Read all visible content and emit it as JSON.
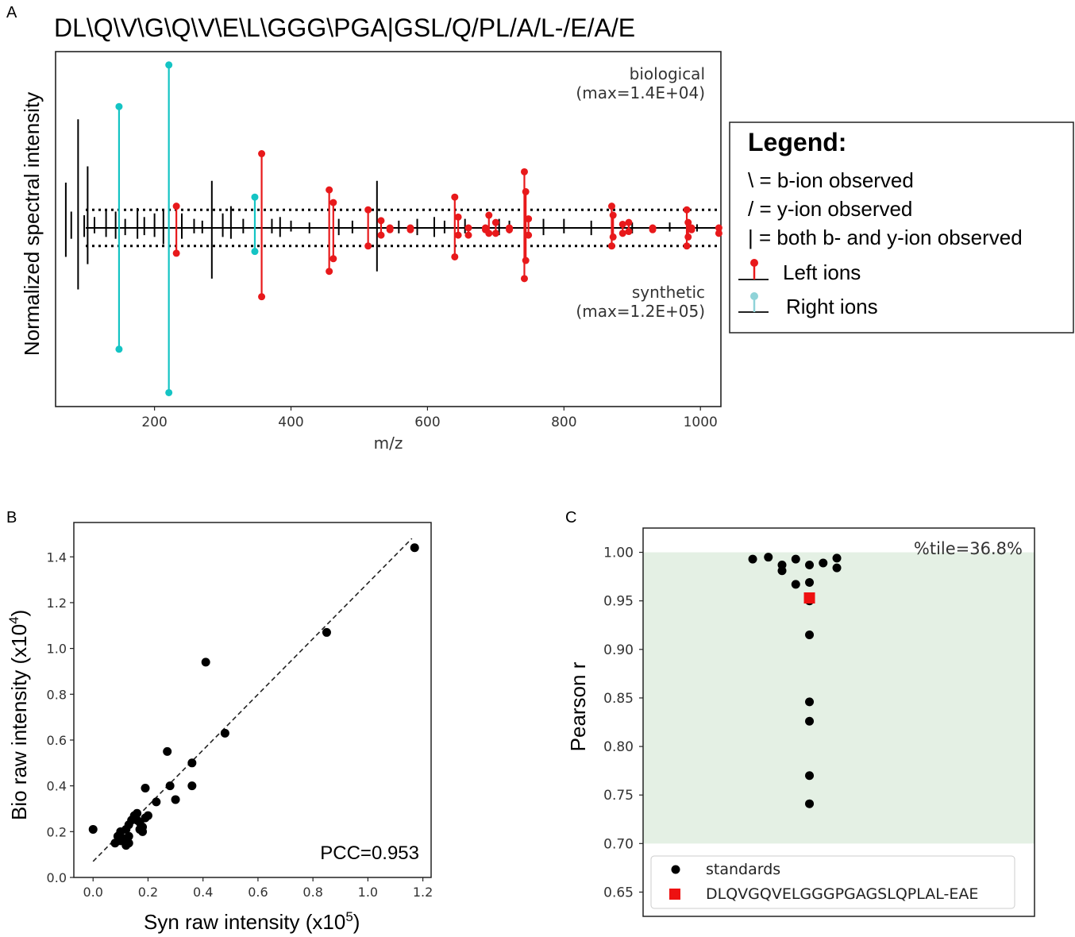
{
  "panels": {
    "a": "A",
    "b": "B",
    "c": "C"
  },
  "chart_data": [
    {
      "id": "A",
      "type": "spectrum-mirror",
      "title": "DL\\Q\\V\\G\\Q\\V\\E\\L\\GGG\\PGA|GSL/Q/PL/A/L-/E/A/E",
      "xlabel": "m/z",
      "ylabel": "Normalized spectral intensity",
      "xlim": [
        55,
        1030
      ],
      "ylim": [
        -1,
        1
      ],
      "xticks": [
        200,
        400,
        600,
        800,
        1000
      ],
      "top_label": "biological",
      "top_max": "(max=1.4E+04)",
      "bottom_label": "synthetic",
      "bottom_max": "(max=1.2E+05)",
      "threshold": 0.1,
      "colors": {
        "left": "#e8191b",
        "right": "#14c4c4",
        "unmatched": "#000000"
      },
      "peaks_unmatched": [
        {
          "mz": 70,
          "top": 0.25,
          "bottom": 0.16
        },
        {
          "mz": 78,
          "top": 0.09,
          "bottom": 0.06
        },
        {
          "mz": 88,
          "top": 0.6,
          "bottom": 0.34
        },
        {
          "mz": 97,
          "top": 0.07,
          "bottom": 0.05
        },
        {
          "mz": 102,
          "top": 0.34,
          "bottom": 0.2
        },
        {
          "mz": 112,
          "top": 0.06,
          "bottom": 0.03
        },
        {
          "mz": 129,
          "top": 0.1,
          "bottom": 0.05
        },
        {
          "mz": 143,
          "top": 0.09,
          "bottom": 0.06
        },
        {
          "mz": 157,
          "top": 0.05,
          "bottom": 0.04
        },
        {
          "mz": 175,
          "top": 0.11,
          "bottom": 0.06
        },
        {
          "mz": 185,
          "top": 0.06,
          "bottom": 0.04
        },
        {
          "mz": 200,
          "top": 0.08,
          "bottom": 0.05
        },
        {
          "mz": 213,
          "top": 0.1,
          "bottom": 0.09
        },
        {
          "mz": 240,
          "top": 0.08,
          "bottom": 0.06
        },
        {
          "mz": 258,
          "top": 0.05,
          "bottom": 0.03
        },
        {
          "mz": 270,
          "top": 0.04,
          "bottom": 0.03
        },
        {
          "mz": 284,
          "top": 0.26,
          "bottom": 0.28
        },
        {
          "mz": 300,
          "top": 0.08,
          "bottom": 0.05
        },
        {
          "mz": 312,
          "top": 0.12,
          "bottom": 0.06
        },
        {
          "mz": 330,
          "top": 0.05,
          "bottom": 0.03
        },
        {
          "mz": 372,
          "top": 0.05,
          "bottom": 0.03
        },
        {
          "mz": 384,
          "top": 0.06,
          "bottom": 0.05
        },
        {
          "mz": 400,
          "top": 0.04,
          "bottom": 0.02
        },
        {
          "mz": 427,
          "top": 0.03,
          "bottom": 0.03
        },
        {
          "mz": 470,
          "top": 0.05,
          "bottom": 0.04
        },
        {
          "mz": 490,
          "top": 0.04,
          "bottom": 0.03
        },
        {
          "mz": 526,
          "top": 0.26,
          "bottom": 0.24
        },
        {
          "mz": 558,
          "top": 0.04,
          "bottom": 0.03
        },
        {
          "mz": 585,
          "top": 0.05,
          "bottom": 0.04
        },
        {
          "mz": 610,
          "top": 0.06,
          "bottom": 0.05
        },
        {
          "mz": 625,
          "top": 0.04,
          "bottom": 0.03
        },
        {
          "mz": 655,
          "top": 0.05,
          "bottom": 0.03
        },
        {
          "mz": 705,
          "top": 0.05,
          "bottom": 0.04
        },
        {
          "mz": 720,
          "top": 0.04,
          "bottom": 0.03
        },
        {
          "mz": 770,
          "top": 0.05,
          "bottom": 0.04
        },
        {
          "mz": 800,
          "top": 0.05,
          "bottom": 0.03
        },
        {
          "mz": 840,
          "top": 0.04,
          "bottom": 0.04
        },
        {
          "mz": 900,
          "top": 0.03,
          "bottom": 0.03
        },
        {
          "mz": 955,
          "top": 0.03,
          "bottom": 0.02
        },
        {
          "mz": 995,
          "top": 0.02,
          "bottom": 0.02
        }
      ],
      "peaks_left_ions": [
        {
          "mz": 232,
          "top": 0.12,
          "bottom": 0.14
        },
        {
          "mz": 357,
          "top": 0.41,
          "bottom": 0.38
        },
        {
          "mz": 456,
          "top": 0.21,
          "bottom": 0.24
        },
        {
          "mz": 462,
          "top": 0.14,
          "bottom": 0.17
        },
        {
          "mz": 513,
          "top": 0.1,
          "bottom": 0.1
        },
        {
          "mz": 532,
          "top": 0.04,
          "bottom": 0.04
        },
        {
          "mz": 545,
          "top": 0.0,
          "bottom": 0.01
        },
        {
          "mz": 575,
          "top": 0.0,
          "bottom": 0.01
        },
        {
          "mz": 640,
          "top": 0.17,
          "bottom": 0.16
        },
        {
          "mz": 645,
          "top": 0.06,
          "bottom": 0.04
        },
        {
          "mz": 660,
          "top": 0.0,
          "bottom": 0.04
        },
        {
          "mz": 685,
          "top": 0.0,
          "bottom": 0.01
        },
        {
          "mz": 690,
          "top": 0.07,
          "bottom": 0.03
        },
        {
          "mz": 700,
          "top": 0.03,
          "bottom": 0.03
        },
        {
          "mz": 720,
          "top": 0.0,
          "bottom": 0.01
        },
        {
          "mz": 742,
          "top": 0.31,
          "bottom": 0.28
        },
        {
          "mz": 744,
          "top": 0.2,
          "bottom": 0.18
        },
        {
          "mz": 748,
          "top": 0.05,
          "bottom": 0.04
        },
        {
          "mz": 870,
          "top": 0.12,
          "bottom": 0.1
        },
        {
          "mz": 872,
          "top": 0.07,
          "bottom": 0.05
        },
        {
          "mz": 886,
          "top": 0.02,
          "bottom": 0.03
        },
        {
          "mz": 895,
          "top": 0.03,
          "bottom": 0.02
        },
        {
          "mz": 930,
          "top": 0.0,
          "bottom": 0.01
        },
        {
          "mz": 980,
          "top": 0.1,
          "bottom": 0.1
        },
        {
          "mz": 982,
          "top": 0.03,
          "bottom": 0.05
        },
        {
          "mz": 987,
          "top": 0.0,
          "bottom": 0.01
        },
        {
          "mz": 1027,
          "top": 0.0,
          "bottom": 0.03
        }
      ],
      "peaks_right_ions": [
        {
          "mz": 148,
          "top": 0.67,
          "bottom": 0.67
        },
        {
          "mz": 221,
          "top": 0.9,
          "bottom": 0.91
        },
        {
          "mz": 347,
          "top": 0.17,
          "bottom": 0.13
        }
      ]
    },
    {
      "id": "B",
      "type": "scatter",
      "xlabel": "Syn raw intensity (x10",
      "xlabel_sup": "5",
      "ylabel": "Bio raw intensity (x10",
      "ylabel_sup": "4",
      "label_close": ")",
      "xlim": [
        -0.07,
        1.23
      ],
      "ylim": [
        0,
        1.55
      ],
      "xticks": [
        "0.0",
        "0.2",
        "0.4",
        "0.6",
        "0.8",
        "1.0",
        "1.2"
      ],
      "yticks": [
        "0.0",
        "0.2",
        "0.4",
        "0.6",
        "0.8",
        "1.0",
        "1.2",
        "1.4"
      ],
      "annotation": "PCC=0.953",
      "fit_line": {
        "x": [
          0.0,
          1.16
        ],
        "y": [
          0.07,
          1.48
        ]
      },
      "points": {
        "x": [
          1.17,
          0.85,
          0.41,
          0.48,
          0.27,
          0.36,
          0.19,
          0.28,
          0.36,
          0.3,
          0.23,
          0.2,
          0.15,
          0.16,
          0.17,
          0.18,
          0.13,
          0.12,
          0.1,
          0.09,
          0.08,
          0.11,
          0.13,
          0.18,
          0.19,
          0.0,
          0.16,
          0.14,
          0.1,
          0.12,
          0.17,
          0.13
        ],
        "y": [
          1.44,
          1.07,
          0.94,
          0.63,
          0.55,
          0.5,
          0.39,
          0.4,
          0.4,
          0.34,
          0.33,
          0.27,
          0.27,
          0.25,
          0.24,
          0.22,
          0.23,
          0.21,
          0.2,
          0.18,
          0.15,
          0.17,
          0.15,
          0.2,
          0.26,
          0.21,
          0.28,
          0.25,
          0.16,
          0.14,
          0.21,
          0.18
        ]
      }
    },
    {
      "id": "C",
      "type": "strip",
      "ylabel": "Pearson r",
      "ylim": [
        0.625,
        1.025
      ],
      "yticks": [
        "0.65",
        "0.70",
        "0.75",
        "0.80",
        "0.85",
        "0.90",
        "0.95",
        "1.00"
      ],
      "shaded_band": [
        0.7,
        1.0
      ],
      "annotation": "%tile=36.8%",
      "standards": [
        {
          "x": 0.28,
          "y": 0.993
        },
        {
          "x": 0.32,
          "y": 0.995
        },
        {
          "x": 0.355,
          "y": 0.987
        },
        {
          "x": 0.355,
          "y": 0.981
        },
        {
          "x": 0.39,
          "y": 0.993
        },
        {
          "x": 0.39,
          "y": 0.967
        },
        {
          "x": 0.425,
          "y": 0.987
        },
        {
          "x": 0.425,
          "y": 0.969
        },
        {
          "x": 0.425,
          "y": 0.95
        },
        {
          "x": 0.46,
          "y": 0.989
        },
        {
          "x": 0.495,
          "y": 0.994
        },
        {
          "x": 0.495,
          "y": 0.984
        },
        {
          "x": 0.425,
          "y": 0.915
        },
        {
          "x": 0.425,
          "y": 0.846
        },
        {
          "x": 0.425,
          "y": 0.826
        },
        {
          "x": 0.425,
          "y": 0.77
        },
        {
          "x": 0.425,
          "y": 0.741
        }
      ],
      "query": {
        "x": 0.425,
        "y": 0.953
      },
      "legend": {
        "standards": "standards",
        "query": "DLQVGQVELGGGPGAGSLQPLAL-EAE"
      }
    }
  ],
  "legend_box": {
    "title": "Legend:",
    "line1": "\\ = b-ion observed",
    "line2": "/ = y-ion observed",
    "line3": "| = both b- and y-ion observed",
    "left": "Left ions",
    "right": "Right ions"
  }
}
